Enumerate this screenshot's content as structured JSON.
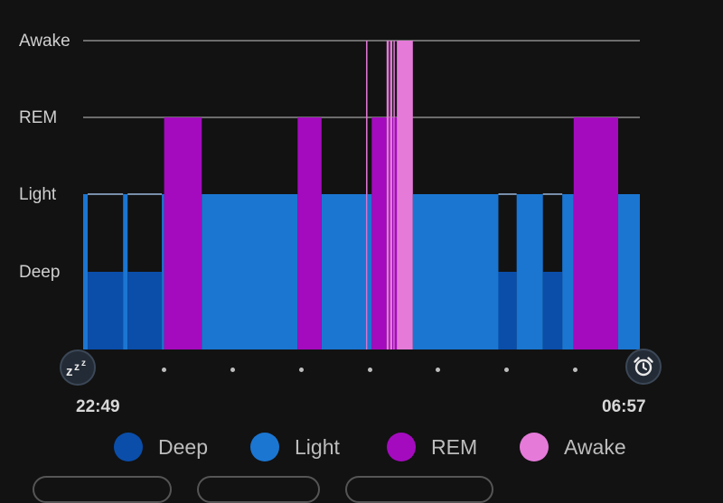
{
  "chart_data": {
    "type": "bar",
    "y_levels": [
      "Deep",
      "Light",
      "REM",
      "Awake"
    ],
    "colors": {
      "Deep": "#0a4eaa",
      "Light": "#1b76d2",
      "REM": "#a40bbe",
      "Awake": "#e57ad9"
    },
    "start_time": "22:49",
    "end_time": "06:57",
    "x_unit": "minutes after 22:49",
    "x_range": [
      0,
      488
    ],
    "segments": [
      {
        "start": 0,
        "end": 4,
        "stage": "Light"
      },
      {
        "start": 4,
        "end": 35,
        "stage": "Deep"
      },
      {
        "start": 35,
        "end": 39,
        "stage": "Light"
      },
      {
        "start": 39,
        "end": 69,
        "stage": "Deep"
      },
      {
        "start": 69,
        "end": 71,
        "stage": "Light"
      },
      {
        "start": 71,
        "end": 104,
        "stage": "REM"
      },
      {
        "start": 104,
        "end": 188,
        "stage": "Light"
      },
      {
        "start": 188,
        "end": 209,
        "stage": "REM"
      },
      {
        "start": 209,
        "end": 248,
        "stage": "Light"
      },
      {
        "start": 248,
        "end": 249,
        "stage": "Awake"
      },
      {
        "start": 249,
        "end": 253,
        "stage": "Light"
      },
      {
        "start": 253,
        "end": 266,
        "stage": "REM"
      },
      {
        "start": 266,
        "end": 268,
        "stage": "Awake"
      },
      {
        "start": 268,
        "end": 269,
        "stage": "REM"
      },
      {
        "start": 269,
        "end": 271,
        "stage": "Awake"
      },
      {
        "start": 271,
        "end": 272,
        "stage": "REM"
      },
      {
        "start": 272,
        "end": 273,
        "stage": "Awake"
      },
      {
        "start": 273,
        "end": 275,
        "stage": "REM"
      },
      {
        "start": 275,
        "end": 289,
        "stage": "Awake"
      },
      {
        "start": 289,
        "end": 364,
        "stage": "Light"
      },
      {
        "start": 364,
        "end": 380,
        "stage": "Deep"
      },
      {
        "start": 380,
        "end": 403,
        "stage": "Light"
      },
      {
        "start": 403,
        "end": 420,
        "stage": "Deep"
      },
      {
        "start": 420,
        "end": 430,
        "stage": "Light"
      },
      {
        "start": 430,
        "end": 469,
        "stage": "REM"
      },
      {
        "start": 469,
        "end": 488,
        "stage": "Light"
      }
    ],
    "legend": [
      "Deep",
      "Light",
      "REM",
      "Awake"
    ],
    "grid": true
  },
  "labels": {
    "start_time": "22:49",
    "end_time": "06:57",
    "legend_deep": "Deep",
    "legend_light": "Light",
    "legend_rem": "REM",
    "legend_awake": "Awake"
  },
  "icons": {
    "start": "sleep-zzz-icon",
    "end": "alarm-clock-icon"
  }
}
